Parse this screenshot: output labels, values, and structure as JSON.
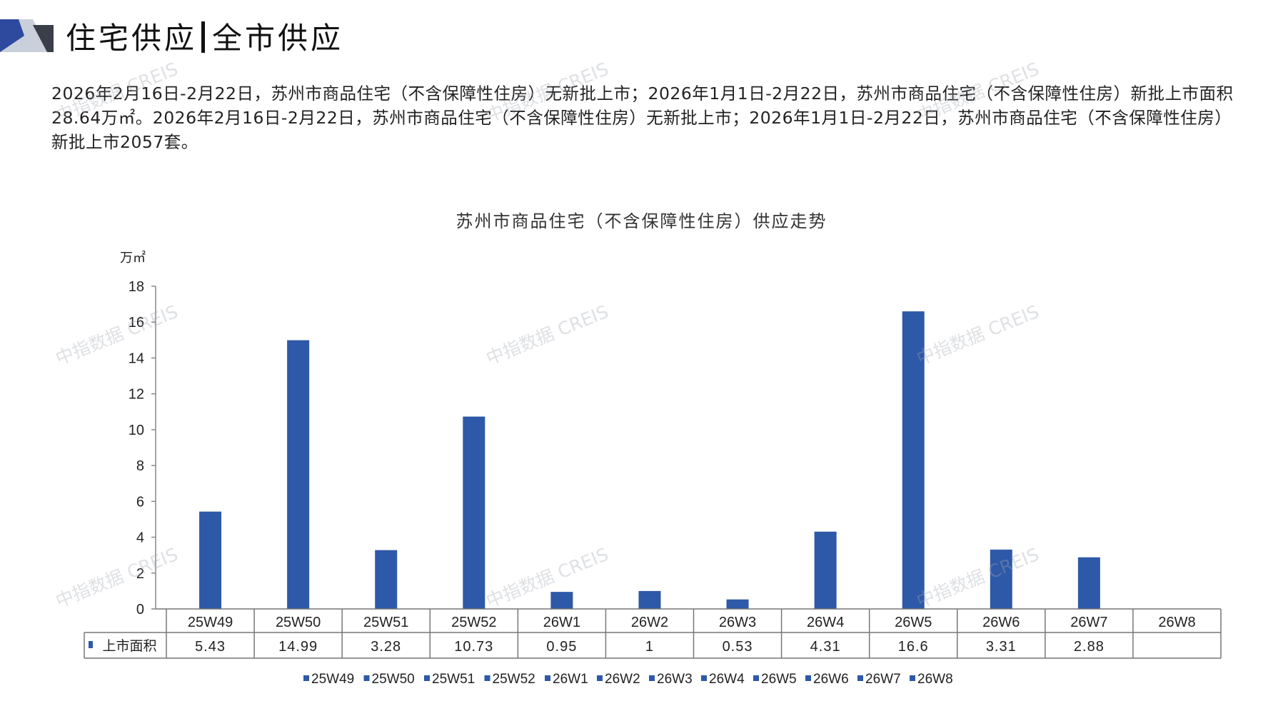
{
  "header": {
    "title_left": "住宅供应",
    "title_right": "全市供应"
  },
  "intro": {
    "text": "2026年2月16日-2月22日，苏州市商品住宅（不含保障性住房）无新批上市；2026年1月1日-2月22日，苏州市商品住宅（不含保障性住房）新批上市面积28.64万㎡。2026年2月16日-2月22日，苏州市商品住宅（不含保障性住房）无新批上市；2026年1月1日-2月22日，苏州市商品住宅（不含保障性住房）新批上市2057套。"
  },
  "watermark": "中指数据 CREIS",
  "colors": {
    "bar": "#2E59A8",
    "logo_dark": "#2E4A9E",
    "logo_light": "#C9CFDB"
  },
  "chart_data": {
    "type": "bar",
    "title": "苏州市商品住宅（不含保障性住房）供应走势",
    "ylabel": "万㎡",
    "ylim": [
      0,
      18
    ],
    "yticks": [
      0,
      2,
      4,
      6,
      8,
      10,
      12,
      14,
      16,
      18
    ],
    "categories": [
      "25W49",
      "25W50",
      "25W51",
      "25W52",
      "26W1",
      "26W2",
      "26W3",
      "26W4",
      "26W5",
      "26W6",
      "26W7",
      "26W8"
    ],
    "series": [
      {
        "name": "上市面积",
        "values": [
          5.43,
          14.99,
          3.28,
          10.73,
          0.95,
          1,
          0.53,
          4.31,
          16.6,
          3.31,
          2.88,
          null
        ]
      }
    ],
    "table_labels": [
      "5.43",
      "14.99",
      "3.28",
      "10.73",
      "0.95",
      "1",
      "0.53",
      "4.31",
      "16.6",
      "3.31",
      "2.88",
      ""
    ],
    "legend": [
      "25W49",
      "25W50",
      "25W51",
      "25W52",
      "26W1",
      "26W2",
      "26W3",
      "26W4",
      "26W5",
      "26W6",
      "26W7",
      "26W8"
    ],
    "legend_position": "bottom",
    "grid": false
  }
}
